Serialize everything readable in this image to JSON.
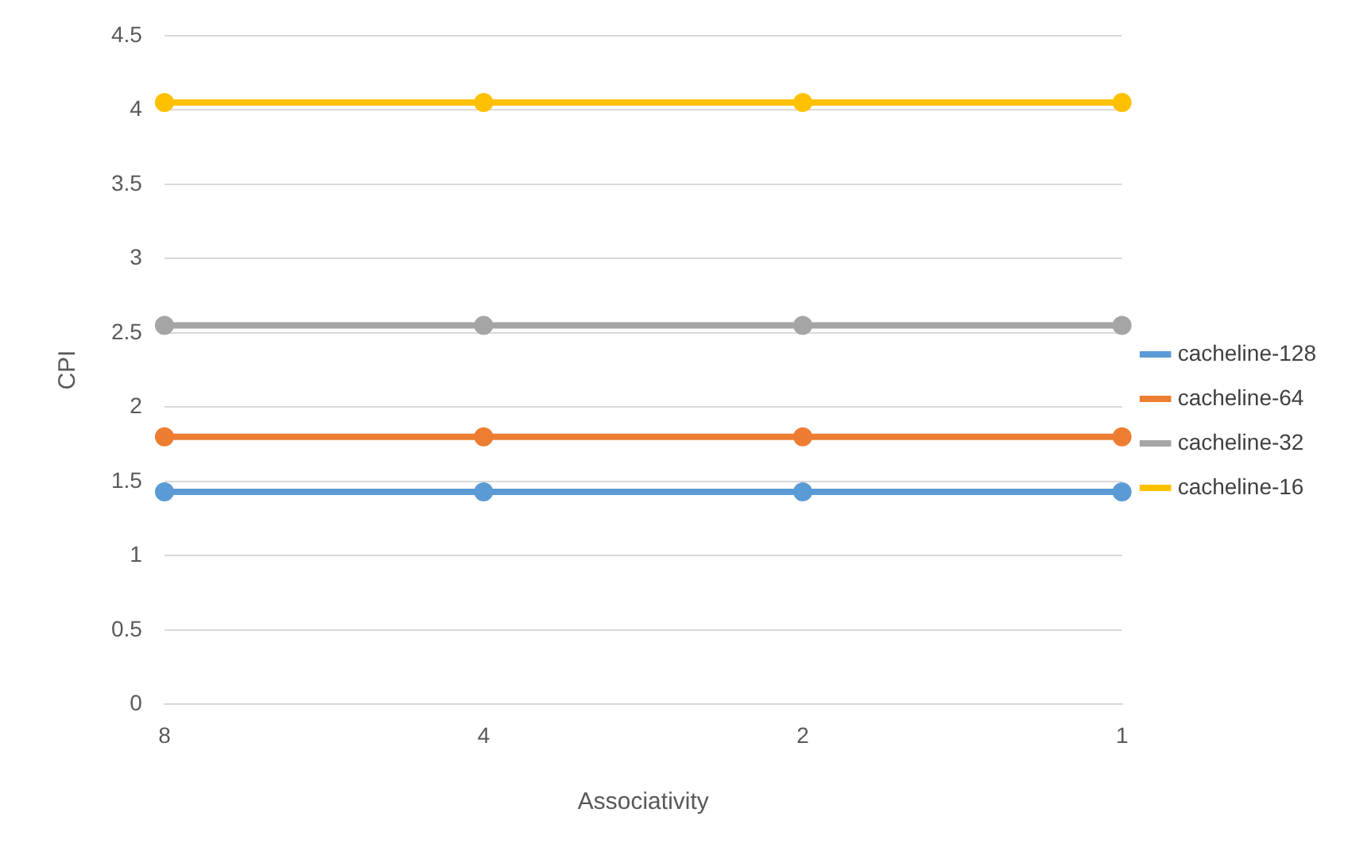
{
  "chart_data": {
    "type": "line",
    "xlabel": "Associativity",
    "ylabel": "CPI",
    "categories": [
      "8",
      "4",
      "2",
      "1"
    ],
    "series": [
      {
        "name": "cacheline-128",
        "color": "#5b9bd5",
        "values": [
          1.43,
          1.43,
          1.43,
          1.43
        ]
      },
      {
        "name": "cacheline-64",
        "color": "#ed7d31",
        "values": [
          1.8,
          1.8,
          1.8,
          1.8
        ]
      },
      {
        "name": "cacheline-32",
        "color": "#a5a5a5",
        "values": [
          2.55,
          2.55,
          2.55,
          2.55
        ]
      },
      {
        "name": "cacheline-16",
        "color": "#ffc000",
        "values": [
          4.05,
          4.05,
          4.05,
          4.05
        ]
      }
    ],
    "ylim": [
      0,
      4.5
    ],
    "yticks": [
      0,
      0.5,
      1,
      1.5,
      2,
      2.5,
      3,
      3.5,
      4,
      4.5
    ],
    "grid": "y",
    "legend": "right",
    "marker": "circle",
    "line_style": "solid"
  }
}
